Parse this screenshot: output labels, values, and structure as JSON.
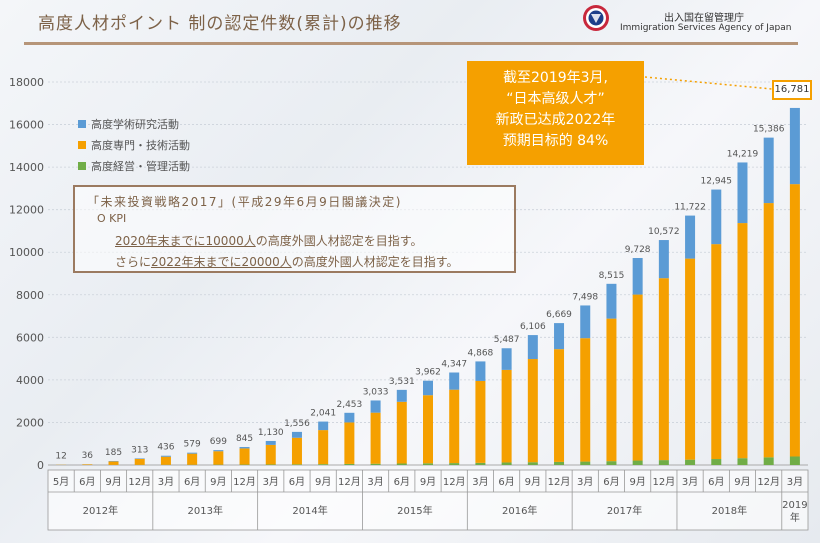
{
  "header": {
    "title": "高度人材ポイント 制の認定件数(累計)の推移",
    "agency_ja": "出入国在留管理庁",
    "agency_en": "Immigration Services Agency of Japan"
  },
  "callout": {
    "lines": [
      "截至2019年3月,",
      "“日本高级人才”",
      "新政已达成2022年",
      "预期目标的  84%"
    ]
  },
  "plan_box": {
    "title": "「未来投資戦略2017」(平成29年6月9日閣議決定)",
    "kpi": "O KPI",
    "line1_u": "2020年末までに10000人",
    "line1_rest": "の高度外國人材認定を目指す。",
    "line2_pre": "さらに",
    "line2_u": "2022年末までに20000人",
    "line2_rest": "の高度外國人材認定を目指す。"
  },
  "legend": [
    {
      "name": "高度学術研究活動",
      "color": "#5b9bd5"
    },
    {
      "name": "高度専門・技術活動",
      "color": "#f5a000"
    },
    {
      "name": "高度経営・管理活動",
      "color": "#70ad47"
    }
  ],
  "chart_data": {
    "type": "bar",
    "stacked": true,
    "ylim": [
      0,
      18000
    ],
    "yticks": [
      0,
      2000,
      4000,
      6000,
      8000,
      10000,
      12000,
      14000,
      16000,
      18000
    ],
    "categories": [
      "5月",
      "6月",
      "9月",
      "12月",
      "3月",
      "6月",
      "9月",
      "12月",
      "3月",
      "6月",
      "9月",
      "12月",
      "3月",
      "6月",
      "9月",
      "12月",
      "3月",
      "6月",
      "9月",
      "12月",
      "3月",
      "6月",
      "9月",
      "12月",
      "3月",
      "6月",
      "9月",
      "12月",
      "3月"
    ],
    "year_groups": [
      {
        "label": "2012年",
        "count": 4
      },
      {
        "label": "2013年",
        "count": 4
      },
      {
        "label": "2014年",
        "count": 4
      },
      {
        "label": "2015年",
        "count": 4
      },
      {
        "label": "2016年",
        "count": 4
      },
      {
        "label": "2017年",
        "count": 4
      },
      {
        "label": "2018年",
        "count": 4
      },
      {
        "label": "2019年",
        "count": 1
      }
    ],
    "totals": [
      12,
      36,
      185,
      313,
      436,
      579,
      699,
      845,
      1130,
      1556,
      2041,
      2453,
      3033,
      3531,
      3962,
      4347,
      4868,
      5487,
      6106,
      6669,
      7498,
      8515,
      9728,
      10572,
      11722,
      12945,
      14219,
      15386,
      16781
    ],
    "total_labels": [
      "12",
      "36",
      "185",
      "313",
      "436",
      "579",
      "699",
      "845",
      "1,130",
      "1,556",
      "2,041",
      "2,453",
      "3,033",
      "3,531",
      "3,962",
      "4,347",
      "4,868",
      "5,487",
      "6,106",
      "6,669",
      "7,498",
      "8,515",
      "9,728",
      "10,572",
      "11,722",
      "12,945",
      "14,219",
      "15,386",
      "16,781"
    ],
    "series": [
      {
        "name": "高度経営・管理活動",
        "color": "#70ad47",
        "values": [
          0,
          1,
          5,
          8,
          10,
          13,
          17,
          20,
          25,
          30,
          40,
          50,
          60,
          70,
          80,
          90,
          100,
          120,
          130,
          145,
          160,
          180,
          210,
          230,
          250,
          280,
          320,
          360,
          400
        ]
      },
      {
        "name": "高度専門・技術活動",
        "color": "#f5a000",
        "values": [
          10,
          30,
          160,
          280,
          380,
          520,
          630,
          760,
          920,
          1250,
          1600,
          1950,
          2400,
          2900,
          3200,
          3450,
          3850,
          4350,
          4850,
          5300,
          5800,
          6700,
          7800,
          8550,
          9450,
          10100,
          11050,
          11950,
          12800
        ]
      },
      {
        "name": "高度学術研究活動",
        "color": "#5b9bd5",
        "values": [
          2,
          5,
          20,
          25,
          46,
          46,
          52,
          65,
          185,
          276,
          401,
          453,
          573,
          561,
          682,
          807,
          918,
          1017,
          1126,
          1224,
          1538,
          1635,
          1718,
          1792,
          2022,
          2565,
          2849,
          3076,
          3581
        ]
      }
    ]
  }
}
